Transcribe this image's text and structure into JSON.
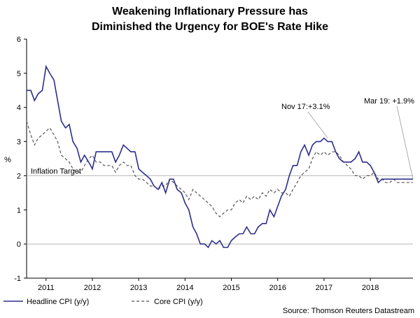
{
  "chart_data": {
    "type": "line",
    "title": [
      "Weakening Inflationary Pressure has",
      "Diminished the Urgency for BOE's Rate Hike"
    ],
    "ylabel": "%",
    "ylim": [
      -1,
      6
    ],
    "yticks": [
      -1,
      0,
      1,
      2,
      3,
      4,
      5,
      6
    ],
    "xlim": [
      2010.58,
      2018.92
    ],
    "xticks": [
      {
        "label": "2011",
        "value": 2011
      },
      {
        "label": "2012",
        "value": 2012
      },
      {
        "label": "2013",
        "value": 2013
      },
      {
        "label": "2014",
        "value": 2014
      },
      {
        "label": "2015",
        "value": 2015
      },
      {
        "label": "2016",
        "value": 2016
      },
      {
        "label": "2017",
        "value": 2017
      },
      {
        "label": "2018",
        "value": 2018
      }
    ],
    "grid": false,
    "reference_line": {
      "value": 2,
      "label": "Inflation Target",
      "color": "#b8b8b8"
    },
    "zero_line_color": "#b8b8b8",
    "series": [
      {
        "name": "Headline CPI (y/y)",
        "style": "solid",
        "color": "#2e2e8c",
        "x": [
          2010.58,
          2010.67,
          2010.75,
          2010.83,
          2010.92,
          2011.0,
          2011.08,
          2011.17,
          2011.25,
          2011.33,
          2011.42,
          2011.5,
          2011.58,
          2011.67,
          2011.75,
          2011.83,
          2011.92,
          2012.0,
          2012.08,
          2012.17,
          2012.25,
          2012.33,
          2012.42,
          2012.5,
          2012.58,
          2012.67,
          2012.75,
          2012.83,
          2012.92,
          2013.0,
          2013.08,
          2013.17,
          2013.25,
          2013.33,
          2013.42,
          2013.5,
          2013.58,
          2013.67,
          2013.75,
          2013.83,
          2013.92,
          2014.0,
          2014.08,
          2014.17,
          2014.25,
          2014.33,
          2014.42,
          2014.5,
          2014.58,
          2014.67,
          2014.75,
          2014.83,
          2014.92,
          2015.0,
          2015.08,
          2015.17,
          2015.25,
          2015.33,
          2015.42,
          2015.5,
          2015.58,
          2015.67,
          2015.75,
          2015.83,
          2015.92,
          2016.0,
          2016.08,
          2016.17,
          2016.25,
          2016.33,
          2016.42,
          2016.5,
          2016.58,
          2016.67,
          2016.75,
          2016.83,
          2016.92,
          2017.0,
          2017.08,
          2017.17,
          2017.25,
          2017.33,
          2017.42,
          2017.5,
          2017.58,
          2017.67,
          2017.75,
          2017.83,
          2017.92,
          2018.0,
          2018.08,
          2018.17,
          2018.25,
          2018.33,
          2018.42,
          2018.5,
          2018.58,
          2018.67,
          2018.75,
          2018.83,
          2018.92
        ],
        "y": [
          4.5,
          4.5,
          4.2,
          4.4,
          4.5,
          5.2,
          5.0,
          4.8,
          4.2,
          3.6,
          3.4,
          3.5,
          3.0,
          2.8,
          2.4,
          2.6,
          2.4,
          2.2,
          2.7,
          2.7,
          2.7,
          2.7,
          2.7,
          2.4,
          2.6,
          2.9,
          2.8,
          2.7,
          2.7,
          2.2,
          2.1,
          2.0,
          1.9,
          1.7,
          1.6,
          1.8,
          1.5,
          1.9,
          1.9,
          1.6,
          1.5,
          1.2,
          1.0,
          0.5,
          0.3,
          0.0,
          0.0,
          -0.1,
          0.1,
          0.0,
          0.1,
          -0.1,
          -0.1,
          0.1,
          0.2,
          0.3,
          0.3,
          0.5,
          0.3,
          0.3,
          0.5,
          0.6,
          0.6,
          1.0,
          0.8,
          1.1,
          1.4,
          1.6,
          2.0,
          2.3,
          2.3,
          2.7,
          2.9,
          2.6,
          2.9,
          3.0,
          3.0,
          3.1,
          3.0,
          3.0,
          2.7,
          2.5,
          2.4,
          2.4,
          2.4,
          2.5,
          2.7,
          2.4,
          2.4,
          2.3,
          2.1,
          1.8,
          1.9,
          1.9,
          1.9,
          1.9,
          1.9,
          1.9,
          1.9,
          1.9,
          1.9
        ]
      },
      {
        "name": "Core CPI (y/y)",
        "style": "dashed",
        "color": "#555555",
        "x": [
          2010.58,
          2010.67,
          2010.75,
          2010.83,
          2010.92,
          2011.0,
          2011.08,
          2011.17,
          2011.25,
          2011.33,
          2011.42,
          2011.5,
          2011.58,
          2011.67,
          2011.75,
          2011.83,
          2011.92,
          2012.0,
          2012.08,
          2012.17,
          2012.25,
          2012.33,
          2012.42,
          2012.5,
          2012.58,
          2012.67,
          2012.75,
          2012.83,
          2012.92,
          2013.0,
          2013.08,
          2013.17,
          2013.25,
          2013.33,
          2013.42,
          2013.5,
          2013.58,
          2013.67,
          2013.75,
          2013.83,
          2013.92,
          2014.0,
          2014.08,
          2014.17,
          2014.25,
          2014.33,
          2014.42,
          2014.5,
          2014.58,
          2014.67,
          2014.75,
          2014.83,
          2014.92,
          2015.0,
          2015.08,
          2015.17,
          2015.25,
          2015.33,
          2015.42,
          2015.5,
          2015.58,
          2015.67,
          2015.75,
          2015.83,
          2015.92,
          2016.0,
          2016.08,
          2016.17,
          2016.25,
          2016.33,
          2016.42,
          2016.5,
          2016.58,
          2016.67,
          2016.75,
          2016.83,
          2016.92,
          2017.0,
          2017.08,
          2017.17,
          2017.25,
          2017.33,
          2017.42,
          2017.5,
          2017.58,
          2017.67,
          2017.75,
          2017.83,
          2017.92,
          2018.0,
          2018.08,
          2018.17,
          2018.25,
          2018.33,
          2018.42,
          2018.5,
          2018.58,
          2018.67,
          2018.75,
          2018.83,
          2018.92
        ],
        "y": [
          3.6,
          3.2,
          2.9,
          3.1,
          3.2,
          3.3,
          3.4,
          3.2,
          3.0,
          2.6,
          2.5,
          2.4,
          2.2,
          2.1,
          2.1,
          2.3,
          2.5,
          2.6,
          2.4,
          2.4,
          2.3,
          2.3,
          2.3,
          2.1,
          2.3,
          2.4,
          2.3,
          2.3,
          2.0,
          1.9,
          1.9,
          1.8,
          1.7,
          1.7,
          1.6,
          1.7,
          1.7,
          1.9,
          1.8,
          1.7,
          1.6,
          1.5,
          1.3,
          1.6,
          1.5,
          1.4,
          1.3,
          1.2,
          1.1,
          0.9,
          0.8,
          0.9,
          1.0,
          1.0,
          1.2,
          1.3,
          1.2,
          1.4,
          1.3,
          1.4,
          1.3,
          1.5,
          1.4,
          1.6,
          1.5,
          1.6,
          1.5,
          1.5,
          1.4,
          1.6,
          1.8,
          2.0,
          2.1,
          2.2,
          2.5,
          2.7,
          2.6,
          2.7,
          2.6,
          2.7,
          2.7,
          2.6,
          2.4,
          2.3,
          2.2,
          2.0,
          2.0,
          1.9,
          2.0,
          2.0,
          2.1,
          1.9,
          1.9,
          1.8,
          1.8,
          1.9,
          1.8,
          1.8,
          1.8,
          1.8,
          1.8
        ]
      }
    ],
    "annotations": [
      {
        "text": "Nov 17:+3.1%",
        "target_x": 2017.08,
        "target_y": 3.1
      },
      {
        "text": "Mar 19: +1.9%",
        "target_x": 2018.92,
        "target_y": 1.9
      }
    ],
    "legend": {
      "placement": "bottom-left",
      "entries": [
        "Headline CPI (y/y)",
        "Core CPI (y/y)"
      ]
    },
    "source": "Source: Thomson Reuters Datastream"
  }
}
